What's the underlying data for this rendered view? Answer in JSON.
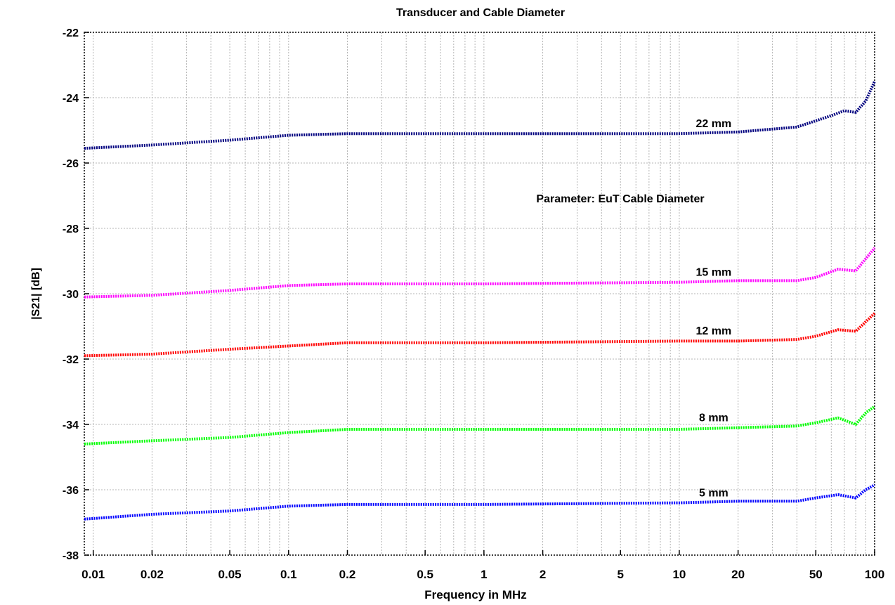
{
  "chart_data": {
    "type": "line",
    "title": "Transducer and Cable Diameter",
    "xlabel": "Frequency in MHz",
    "ylabel": "|S21| [dB]",
    "x_scale": "log",
    "xlim": [
      0.009,
      100
    ],
    "ylim": [
      -38,
      -22
    ],
    "grid": true,
    "x_ticks": [
      0.01,
      0.02,
      0.05,
      0.1,
      0.2,
      0.5,
      1,
      2,
      5,
      10,
      20,
      50,
      100
    ],
    "x_tick_labels": [
      "0.01",
      "0.02",
      "0.05",
      "0.1",
      "0.2",
      "0.5",
      "1",
      "2",
      "5",
      "10",
      "20",
      "50",
      "100"
    ],
    "y_ticks": [
      -38,
      -36,
      -34,
      -32,
      -30,
      -28,
      -26,
      -24,
      -22
    ],
    "y_tick_labels": [
      "-38",
      "-36",
      "-34",
      "-32",
      "-30",
      "-28",
      "-26",
      "-24",
      "-22"
    ],
    "annotation": "Parameter: EuT Cable Diameter",
    "series": [
      {
        "name": "22 mm",
        "color": "#00007f",
        "points": [
          [
            0.009,
            -25.55
          ],
          [
            0.02,
            -25.45
          ],
          [
            0.05,
            -25.3
          ],
          [
            0.1,
            -25.15
          ],
          [
            0.2,
            -25.1
          ],
          [
            1,
            -25.1
          ],
          [
            10,
            -25.1
          ],
          [
            20,
            -25.05
          ],
          [
            40,
            -24.9
          ],
          [
            60,
            -24.55
          ],
          [
            70,
            -24.4
          ],
          [
            80,
            -24.45
          ],
          [
            90,
            -24.1
          ],
          [
            100,
            -23.5
          ]
        ]
      },
      {
        "name": "15 mm",
        "color": "#ff00ff",
        "points": [
          [
            0.009,
            -30.1
          ],
          [
            0.02,
            -30.05
          ],
          [
            0.05,
            -29.9
          ],
          [
            0.1,
            -29.75
          ],
          [
            0.2,
            -29.7
          ],
          [
            1,
            -29.7
          ],
          [
            10,
            -29.65
          ],
          [
            20,
            -29.6
          ],
          [
            40,
            -29.6
          ],
          [
            50,
            -29.5
          ],
          [
            65,
            -29.25
          ],
          [
            80,
            -29.3
          ],
          [
            100,
            -28.6
          ]
        ]
      },
      {
        "name": "12 mm",
        "color": "#ff0000",
        "points": [
          [
            0.009,
            -31.9
          ],
          [
            0.02,
            -31.85
          ],
          [
            0.05,
            -31.7
          ],
          [
            0.1,
            -31.6
          ],
          [
            0.2,
            -31.5
          ],
          [
            1,
            -31.5
          ],
          [
            10,
            -31.45
          ],
          [
            20,
            -31.45
          ],
          [
            40,
            -31.4
          ],
          [
            50,
            -31.3
          ],
          [
            65,
            -31.1
          ],
          [
            80,
            -31.15
          ],
          [
            100,
            -30.6
          ]
        ]
      },
      {
        "name": "8 mm",
        "color": "#00ff00",
        "points": [
          [
            0.009,
            -34.6
          ],
          [
            0.02,
            -34.5
          ],
          [
            0.05,
            -34.4
          ],
          [
            0.1,
            -34.25
          ],
          [
            0.2,
            -34.15
          ],
          [
            1,
            -34.15
          ],
          [
            10,
            -34.15
          ],
          [
            20,
            -34.1
          ],
          [
            40,
            -34.05
          ],
          [
            50,
            -33.95
          ],
          [
            65,
            -33.8
          ],
          [
            80,
            -34.0
          ],
          [
            90,
            -33.65
          ],
          [
            100,
            -33.45
          ]
        ]
      },
      {
        "name": "5 mm",
        "color": "#0000ff",
        "points": [
          [
            0.009,
            -36.9
          ],
          [
            0.02,
            -36.75
          ],
          [
            0.05,
            -36.65
          ],
          [
            0.1,
            -36.5
          ],
          [
            0.2,
            -36.45
          ],
          [
            1,
            -36.45
          ],
          [
            10,
            -36.4
          ],
          [
            20,
            -36.35
          ],
          [
            40,
            -36.35
          ],
          [
            50,
            -36.25
          ],
          [
            65,
            -36.15
          ],
          [
            80,
            -36.25
          ],
          [
            90,
            -36.0
          ],
          [
            100,
            -35.85
          ]
        ]
      }
    ],
    "series_labels": [
      {
        "text": "22 mm",
        "x": 15,
        "y": -24.9
      },
      {
        "text": "15 mm",
        "x": 15,
        "y": -29.45
      },
      {
        "text": "12 mm",
        "x": 15,
        "y": -31.25
      },
      {
        "text": "8 mm",
        "x": 15,
        "y": -33.9
      },
      {
        "text": "5 mm",
        "x": 15,
        "y": -36.2
      }
    ],
    "annotation_position": {
      "x": 5.5,
      "y": -27.2
    }
  }
}
